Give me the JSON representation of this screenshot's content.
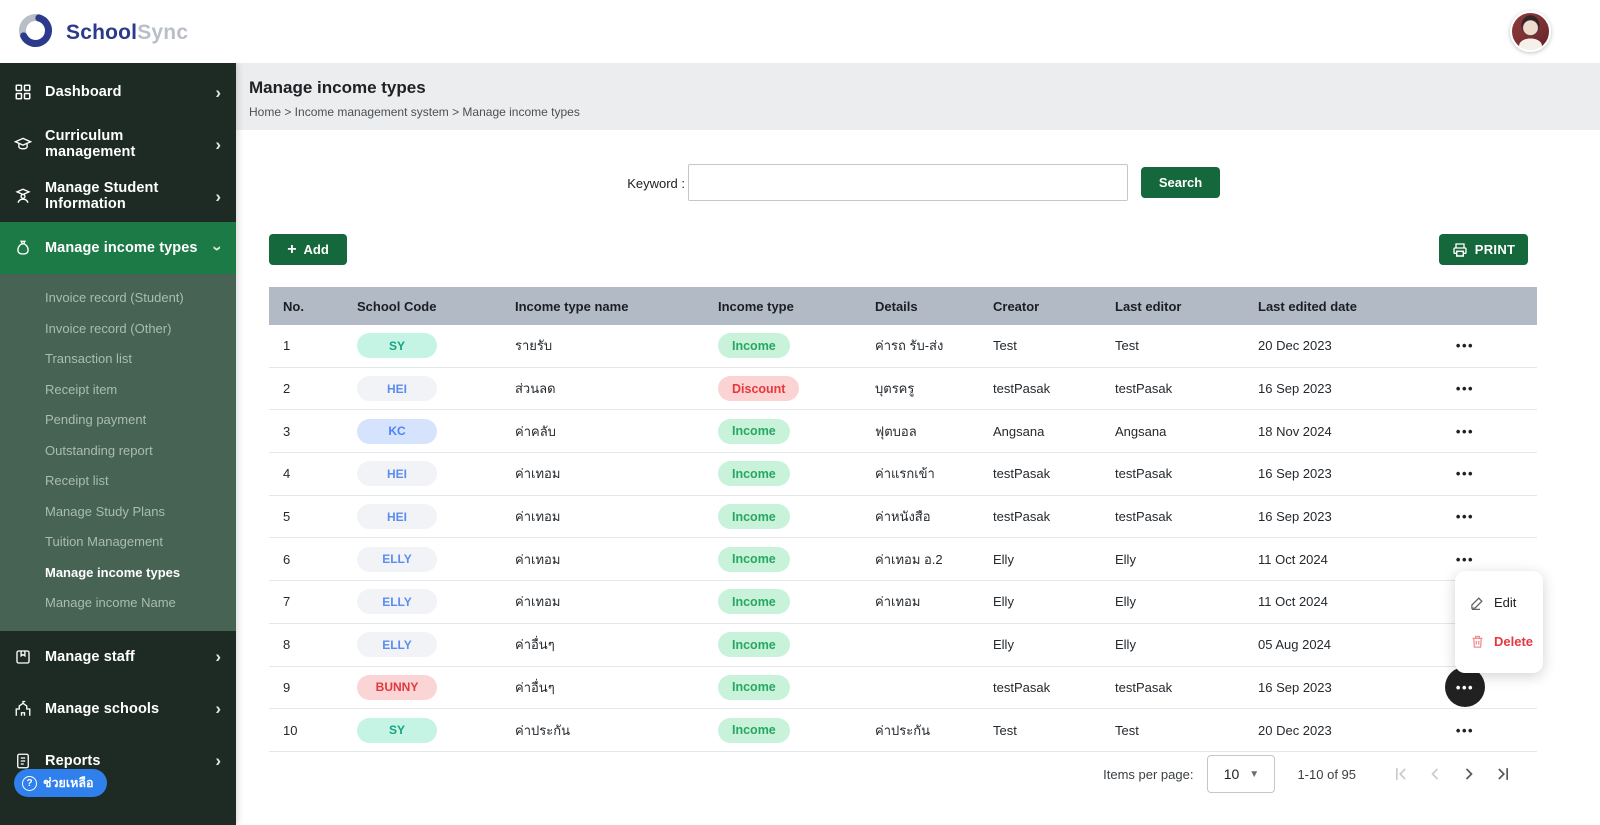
{
  "brand": {
    "name_primary": "School",
    "name_secondary": "Sync"
  },
  "colors": {
    "sidebar_bg": "#1e2b24",
    "sidebar_active": "#1c7a46",
    "submenu_bg": "#466354",
    "button_green": "#15683b",
    "table_header_bg": "#b2bac6",
    "help_blue": "#2f80ed",
    "income_green": "#27a861",
    "discount_red": "#e5393f"
  },
  "sidebar": {
    "items": [
      {
        "label": "Dashboard",
        "icon": "grid",
        "active": false
      },
      {
        "label": "Curriculum management",
        "icon": "graduation-cap",
        "active": false
      },
      {
        "label": "Manage Student Information",
        "icon": "student",
        "active": false
      },
      {
        "label": "Manage income types",
        "icon": "money-bag",
        "active": true
      },
      {
        "label": "Manage staff",
        "icon": "badge",
        "active": false
      },
      {
        "label": "Manage schools",
        "icon": "school",
        "active": false
      },
      {
        "label": "Reports",
        "icon": "report",
        "active": false
      }
    ],
    "submenu": [
      "Invoice record (Student)",
      "Invoice record (Other)",
      "Transaction list",
      "Receipt item",
      "Pending payment",
      "Outstanding report",
      "Receipt list",
      "Manage Study Plans",
      "Tuition Management",
      "Manage income types",
      "Manage income Name"
    ],
    "submenu_active": "Manage income types",
    "help_label": "ช่วยเหลือ"
  },
  "page": {
    "title": "Manage income types",
    "breadcrumb": "Home > Income management system > Manage income types"
  },
  "search": {
    "label": "Keyword :",
    "value": "",
    "button": "Search"
  },
  "toolbar": {
    "add": "Add",
    "print": "PRINT"
  },
  "table": {
    "headers": [
      "No.",
      "School Code",
      "Income type name",
      "Income type",
      "Details",
      "Creator",
      "Last editor",
      "Last edited date"
    ],
    "rows": [
      {
        "no": "1",
        "code": "SY",
        "code_style": "mint",
        "name": "รายรับ",
        "type": "Income",
        "type_style": "income",
        "details": "ค่ารถ รับ-ส่ง",
        "creator": "Test",
        "editor": "Test",
        "date": "20 Dec 2023",
        "menu_open": false
      },
      {
        "no": "2",
        "code": "HEI",
        "code_style": "gray",
        "name": "ส่วนลด",
        "type": "Discount",
        "type_style": "discount",
        "details": "บุตรครู",
        "creator": "testPasak",
        "editor": "testPasak",
        "date": "16 Sep 2023",
        "menu_open": false
      },
      {
        "no": "3",
        "code": "KC",
        "code_style": "blue",
        "name": "ค่าคลับ",
        "type": "Income",
        "type_style": "income",
        "details": "ฟุตบอล",
        "creator": "Angsana",
        "editor": "Angsana",
        "date": "18 Nov 2024",
        "menu_open": false
      },
      {
        "no": "4",
        "code": "HEI",
        "code_style": "gray",
        "name": "ค่าเทอม",
        "type": "Income",
        "type_style": "income",
        "details": "ค่าแรกเข้า",
        "creator": "testPasak",
        "editor": "testPasak",
        "date": "16 Sep 2023",
        "menu_open": false
      },
      {
        "no": "5",
        "code": "HEI",
        "code_style": "gray",
        "name": "ค่าเทอม",
        "type": "Income",
        "type_style": "income",
        "details": "ค่าหนังสือ",
        "creator": "testPasak",
        "editor": "testPasak",
        "date": "16 Sep 2023",
        "menu_open": false
      },
      {
        "no": "6",
        "code": "ELLY",
        "code_style": "gray",
        "name": "ค่าเทอม",
        "type": "Income",
        "type_style": "income",
        "details": "ค่าเทอม อ.2",
        "creator": "Elly",
        "editor": "Elly",
        "date": "11 Oct 2024",
        "menu_open": false
      },
      {
        "no": "7",
        "code": "ELLY",
        "code_style": "gray",
        "name": "ค่าเทอม",
        "type": "Income",
        "type_style": "income",
        "details": "ค่าเทอม",
        "creator": "Elly",
        "editor": "Elly",
        "date": "11 Oct 2024",
        "menu_open": false
      },
      {
        "no": "8",
        "code": "ELLY",
        "code_style": "gray",
        "name": "ค่าอื่นๆ",
        "type": "Income",
        "type_style": "income",
        "details": "",
        "creator": "Elly",
        "editor": "Elly",
        "date": "05 Aug 2024",
        "menu_open": false
      },
      {
        "no": "9",
        "code": "BUNNY",
        "code_style": "pink",
        "name": "ค่าอื่นๆ",
        "type": "Income",
        "type_style": "income",
        "details": "",
        "creator": "testPasak",
        "editor": "testPasak",
        "date": "16 Sep 2023",
        "menu_open": true
      },
      {
        "no": "10",
        "code": "SY",
        "code_style": "mint",
        "name": "ค่าประกัน",
        "type": "Income",
        "type_style": "income",
        "details": "ค่าประกัน",
        "creator": "Test",
        "editor": "Test",
        "date": "20 Dec 2023",
        "menu_open": false
      }
    ]
  },
  "row_menu": {
    "edit": "Edit",
    "delete": "Delete"
  },
  "pagination": {
    "items_per_page_label": "Items per page:",
    "items_per_page": "10",
    "range": "1-10 of 95"
  }
}
